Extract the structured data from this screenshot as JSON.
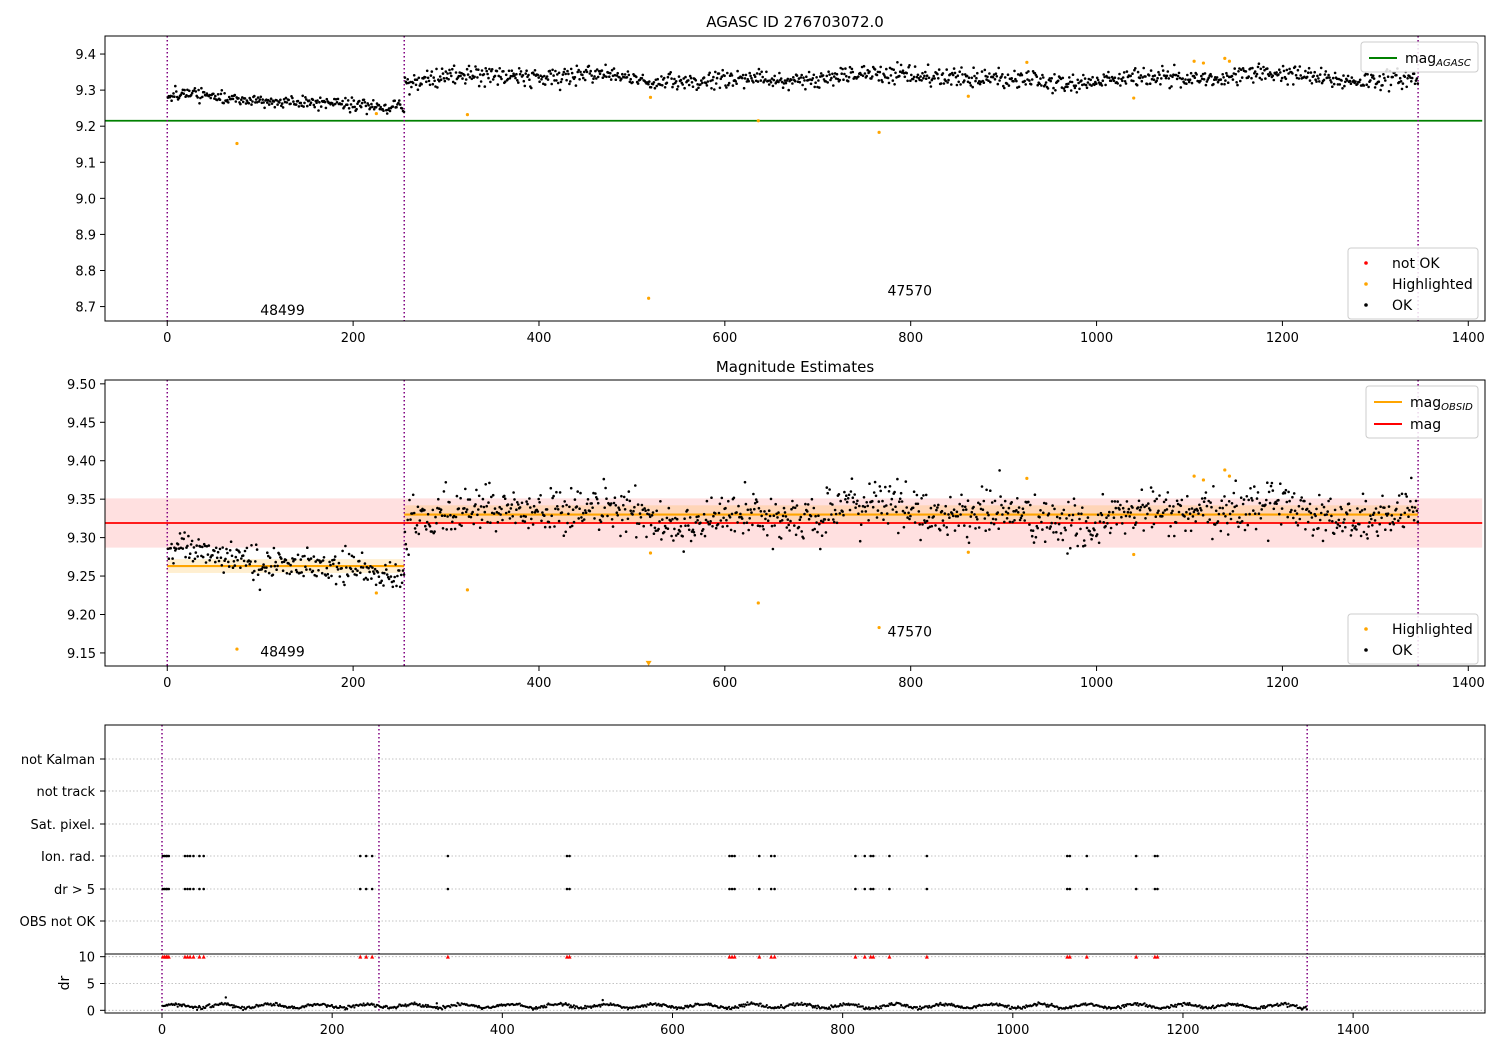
{
  "chart_data": [
    {
      "type": "scatter",
      "title": "AGASC ID 276703072.0",
      "xlim": [
        -67,
        1418
      ],
      "ylim": [
        8.66,
        9.45
      ],
      "xticks": [
        0,
        200,
        400,
        600,
        800,
        1000,
        1200,
        1400
      ],
      "yticks": [
        8.7,
        8.8,
        8.9,
        9.0,
        9.1,
        9.2,
        9.3,
        9.4
      ],
      "ytick_decimals": 1,
      "obs_boundaries": [
        0,
        255,
        1346
      ],
      "obs_labels": [
        {
          "text": "48499",
          "x": 100,
          "y": 8.69
        },
        {
          "text": "47570",
          "x": 775,
          "y": 8.745
        }
      ],
      "agasc_mag": 9.215,
      "agasc_mag_xrange": [
        -67,
        1415
      ],
      "ok_segments": [
        {
          "x0": 0,
          "x1": 255,
          "mean": 9.27,
          "trend": -0.02,
          "scatter": 0.009
        },
        {
          "x0": 255,
          "x1": 1346,
          "mean": 9.333,
          "trend": 0.0,
          "scatter": 0.013
        }
      ],
      "highlighted": [
        [
          75,
          9.152
        ],
        [
          225,
          9.235
        ],
        [
          323,
          9.232
        ],
        [
          518,
          8.723
        ],
        [
          520,
          9.28
        ],
        [
          636,
          9.215
        ],
        [
          766,
          9.183
        ],
        [
          862,
          9.283
        ],
        [
          925,
          9.377
        ],
        [
          1040,
          9.278
        ],
        [
          1105,
          9.38
        ],
        [
          1115,
          9.375
        ],
        [
          1138,
          9.388
        ],
        [
          1143,
          9.38
        ]
      ],
      "not_ok": [],
      "legend_lines": [
        {
          "label": "mag",
          "subscript": "AGASC",
          "color": "#008000"
        }
      ],
      "legend_markers": [
        {
          "label": "not OK",
          "color": "#ff0000"
        },
        {
          "label": "Highlighted",
          "color": "#ffa500"
        },
        {
          "label": "OK",
          "color": "#000000"
        }
      ]
    },
    {
      "type": "scatter",
      "title": "Magnitude Estimates",
      "xlim": [
        -67,
        1418
      ],
      "ylim": [
        9.133,
        9.505
      ],
      "xticks": [
        0,
        200,
        400,
        600,
        800,
        1000,
        1200,
        1400
      ],
      "yticks": [
        9.15,
        9.2,
        9.25,
        9.3,
        9.35,
        9.4,
        9.45,
        9.5
      ],
      "ytick_decimals": 2,
      "obs_boundaries": [
        0,
        255,
        1346
      ],
      "obs_labels": [
        {
          "text": "48499",
          "x": 100,
          "y": 9.152
        },
        {
          "text": "47570",
          "x": 775,
          "y": 9.178
        }
      ],
      "mag": 9.319,
      "mag_band": [
        9.287,
        9.351
      ],
      "mag_xrange": [
        -67,
        1415
      ],
      "obsid_mags": [
        {
          "x0": 0,
          "x1": 255,
          "mag": 9.263,
          "band": [
            9.254,
            9.272
          ]
        },
        {
          "x0": 255,
          "x1": 1346,
          "mag": 9.33,
          "band": [
            9.318,
            9.342
          ]
        }
      ],
      "ok_segments": [
        {
          "x0": 0,
          "x1": 255,
          "mean": 9.268,
          "trend": -0.02,
          "scatter": 0.01
        },
        {
          "x0": 255,
          "x1": 1346,
          "mean": 9.33,
          "trend": 0.0,
          "scatter": 0.015
        }
      ],
      "highlighted": [
        [
          75,
          9.155
        ],
        [
          225,
          9.228
        ],
        [
          323,
          9.232
        ],
        [
          520,
          9.28
        ],
        [
          636,
          9.215
        ],
        [
          766,
          9.183
        ],
        [
          862,
          9.281
        ],
        [
          925,
          9.377
        ],
        [
          1040,
          9.278
        ],
        [
          1105,
          9.38
        ],
        [
          1115,
          9.375
        ],
        [
          1138,
          9.388
        ],
        [
          1143,
          9.38
        ]
      ],
      "below_range": [
        [
          518,
          9.137
        ]
      ],
      "legend_lines": [
        {
          "label": "mag",
          "subscript": "OBSID",
          "color": "#ffa500"
        },
        {
          "label": "mag",
          "subscript": "",
          "color": "#ff0000"
        }
      ],
      "legend_markers": [
        {
          "label": "Highlighted",
          "color": "#ffa500"
        },
        {
          "label": "OK",
          "color": "#000000"
        }
      ]
    },
    {
      "type": "scatter",
      "xlim": [
        -67,
        1555
      ],
      "xticks": [
        0,
        200,
        400,
        600,
        800,
        1000,
        1200,
        1400
      ],
      "obs_boundaries": [
        0,
        255,
        1346
      ],
      "flag_rows": [
        "not Kalman",
        "not track",
        "Sat. pixel.",
        "Ion. rad.",
        "dr > 5",
        "OBS not OK"
      ],
      "flag_x": [
        1,
        3,
        5,
        6,
        8,
        27,
        30,
        33,
        37,
        44,
        49,
        233,
        240,
        247,
        336,
        476,
        479,
        667,
        670,
        673,
        702,
        716,
        720,
        815,
        826,
        833,
        836,
        855,
        899,
        1064,
        1067,
        1087,
        1145,
        1167,
        1170
      ],
      "dr_ylabel": "dr",
      "dr_ylim": [
        -0.5,
        10.5
      ],
      "dr_yticks": [
        0,
        5,
        10
      ],
      "dr_capped_value": 10,
      "dr_points": [
        [
          75,
          2.4
        ],
        [
          518,
          1.9
        ],
        [
          323,
          1.3
        ]
      ]
    }
  ]
}
